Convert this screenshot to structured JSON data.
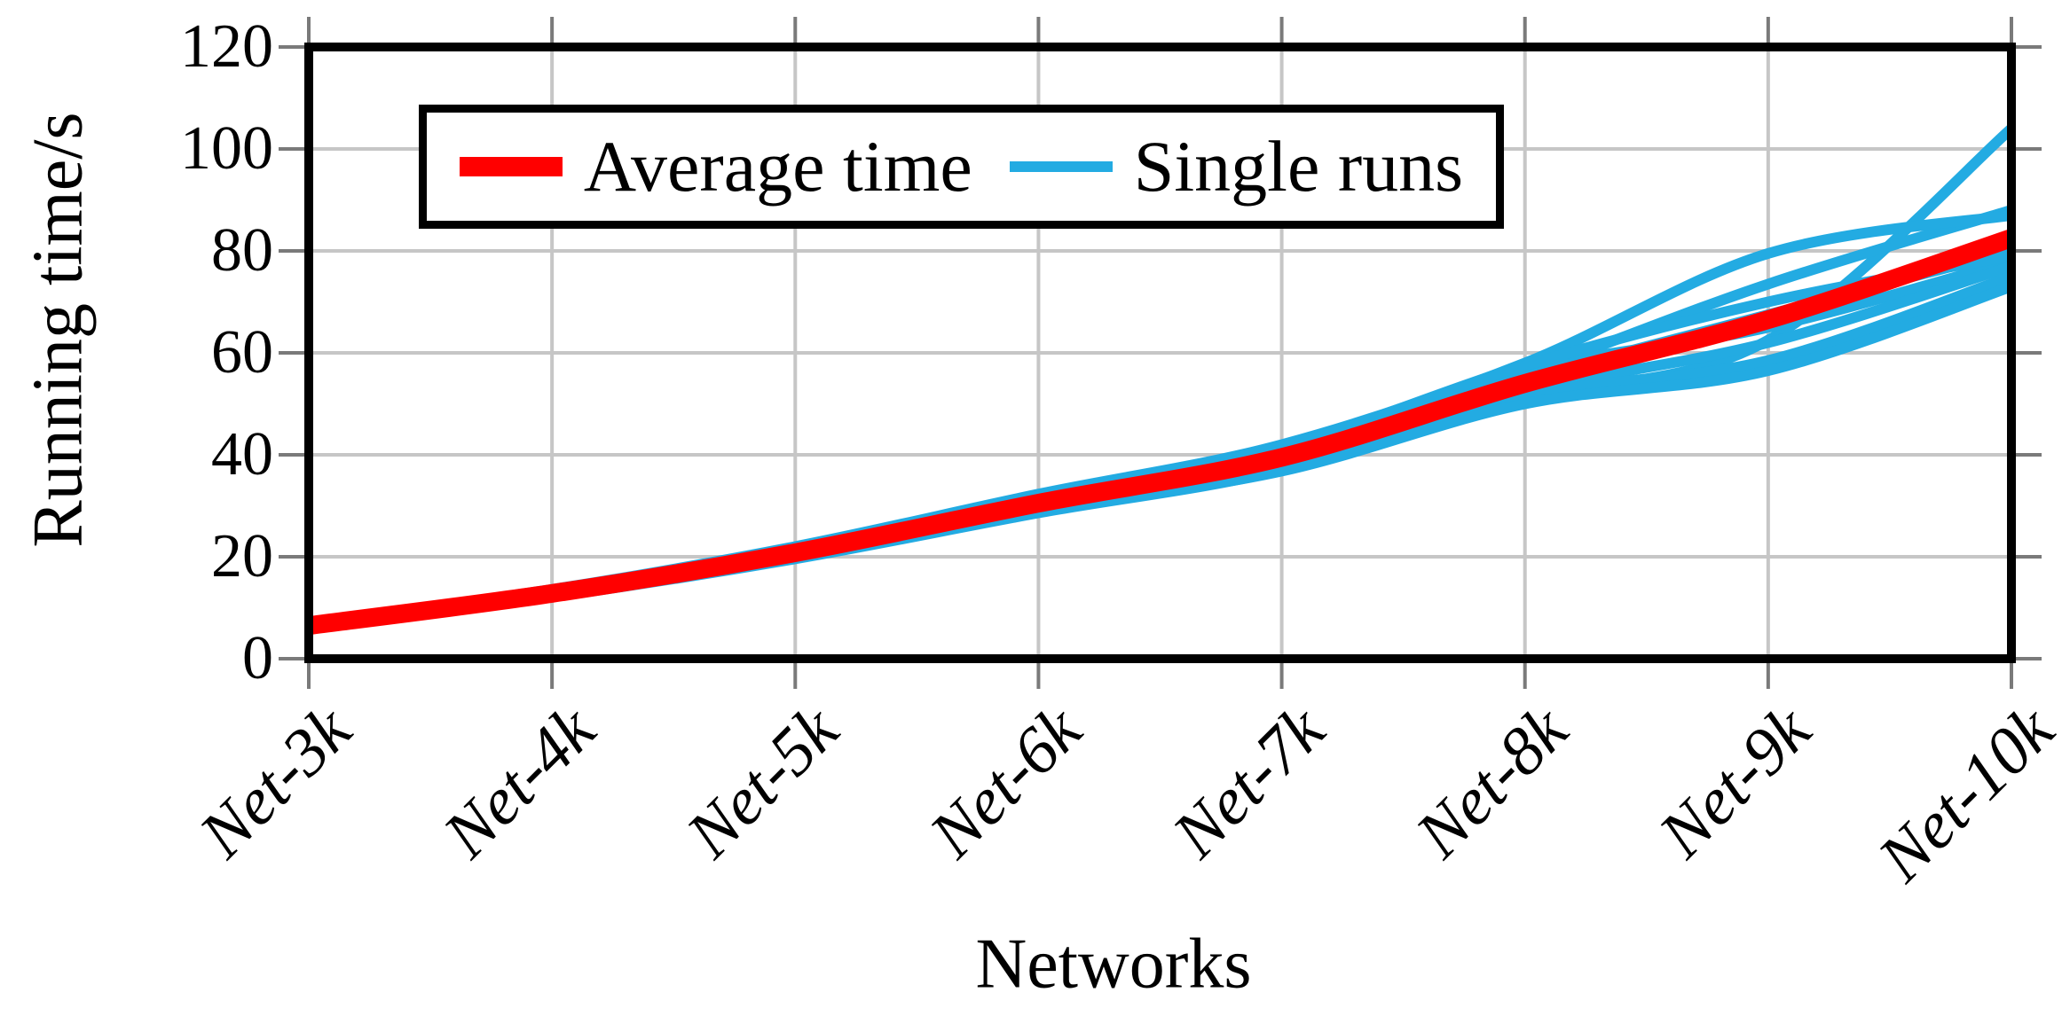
{
  "figure": {
    "background": "#ffffff",
    "frame_color": "#000000",
    "grid_color": "#c6c6c6",
    "tick_color": "#7a7a7a"
  },
  "chart_data": {
    "type": "line",
    "title": "",
    "xlabel": "Networks",
    "ylabel": "Running time/s",
    "categories": [
      "Net-3k",
      "Net-4k",
      "Net-5k",
      "Net-6k",
      "Net-7k",
      "Net-8k",
      "Net-9k",
      "Net-10k"
    ],
    "yticks": [
      0,
      20,
      40,
      60,
      80,
      100,
      120
    ],
    "ylim": [
      0,
      120
    ],
    "grid": "both",
    "legend_position": "top-left-inside",
    "series": [
      {
        "name": "Average time",
        "role": "average",
        "color": "#ff0000",
        "line_width": 21,
        "values": [
          6.5,
          12.8,
          20.8,
          30.5,
          39.5,
          54,
          66.5,
          82.5
        ]
      },
      {
        "name": "Single runs",
        "role": "runs",
        "color": "#23abe2",
        "line_width": 12,
        "runs": [
          [
            6.2,
            12.3,
            20.2,
            30.2,
            39.0,
            51.0,
            62.5,
            104.0
          ],
          [
            6.0,
            12.9,
            21.4,
            31.6,
            40.2,
            56.0,
            73.5,
            88.0
          ],
          [
            7.0,
            13.6,
            22.0,
            32.3,
            42.0,
            58.0,
            79.5,
            87.0
          ],
          [
            6.6,
            12.6,
            20.0,
            30.0,
            38.0,
            54.5,
            67.5,
            80.0
          ],
          [
            6.3,
            12.9,
            21.0,
            31.0,
            40.5,
            56.5,
            65.0,
            78.0
          ],
          [
            6.9,
            13.1,
            20.6,
            29.6,
            39.3,
            52.5,
            62.0,
            77.0
          ],
          [
            6.1,
            12.1,
            19.6,
            28.6,
            37.0,
            51.5,
            58.5,
            75.0
          ],
          [
            6.5,
            12.4,
            20.1,
            29.2,
            36.8,
            50.0,
            56.5,
            73.0
          ],
          [
            7.1,
            13.4,
            21.9,
            32.0,
            41.5,
            57.5,
            70.0,
            79.0
          ]
        ]
      }
    ]
  }
}
